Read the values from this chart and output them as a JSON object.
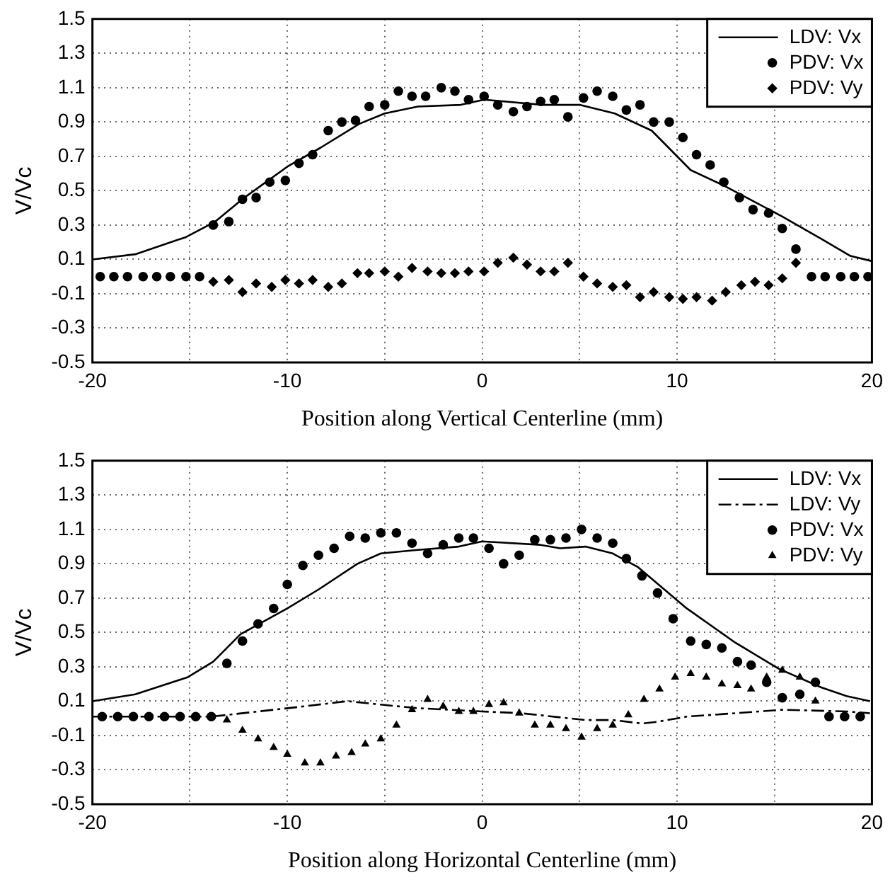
{
  "chart_data": [
    {
      "type": "scatter",
      "xlabel": "Position along Vertical Centerline (mm)",
      "ylabel": "V/Vc",
      "xlim": [
        -20,
        20
      ],
      "ylim": [
        -0.5,
        1.5
      ],
      "xticks": [
        -20,
        {
          "value": -15,
          "label": null
        },
        -10,
        {
          "value": -5,
          "label": null
        },
        0,
        {
          "value": 5,
          "label": null
        },
        10,
        {
          "value": 15,
          "label": null
        },
        20
      ],
      "yticks": [
        -0.5,
        -0.3,
        -0.1,
        0.1,
        0.3,
        0.5,
        0.7,
        0.9,
        1.1,
        1.3,
        1.5
      ],
      "grid": true,
      "legend": "top right",
      "series": [
        {
          "name": "LDV: Vx",
          "type": "line",
          "color": "#000000",
          "marker": "none",
          "line_style": "solid",
          "x": [
            -20,
            -17.8,
            -15.2,
            -13.7,
            -12.2,
            -10,
            -8.3,
            -6.3,
            -5,
            -3.3,
            -1.1,
            0.1,
            3.1,
            5,
            6.8,
            8.7,
            10.7,
            12.4,
            15.4,
            17.4,
            18.9,
            20
          ],
          "values": [
            0.1,
            0.13,
            0.23,
            0.32,
            0.46,
            0.64,
            0.75,
            0.89,
            0.95,
            0.99,
            1.0,
            1.03,
            1.0,
            1.0,
            0.95,
            0.85,
            0.62,
            0.53,
            0.35,
            0.22,
            0.12,
            0.09
          ]
        },
        {
          "name": "PDV: Vx",
          "color": "#000000",
          "marker": "circle",
          "x": [
            -19.6,
            -18.9,
            -18.2,
            -17.4,
            -16.7,
            -16,
            -15.2,
            -14.5,
            -13.8,
            -13,
            -12.3,
            -11.6,
            -10.9,
            -10.1,
            -9.4,
            -8.7,
            -7.9,
            -7.2,
            -6.5,
            -5.8,
            -5,
            -4.3,
            -3.6,
            -2.9,
            -2.1,
            -1.4,
            -0.7,
            0.1,
            0.8,
            1.6,
            2.3,
            3,
            3.7,
            4.4,
            5.2,
            5.9,
            6.7,
            7.4,
            8.1,
            8.8,
            9.6,
            10.3,
            11,
            11.7,
            12.4,
            13.2,
            13.9,
            14.7,
            15.4,
            16.1,
            16.9,
            17.6,
            18.4,
            19.1,
            19.8
          ],
          "values": [
            0,
            0,
            0,
            0,
            0,
            0,
            0,
            0,
            0.3,
            0.32,
            0.45,
            0.46,
            0.55,
            0.56,
            0.66,
            0.71,
            0.85,
            0.9,
            0.91,
            0.99,
            1.0,
            1.08,
            1.05,
            1.05,
            1.1,
            1.08,
            1.03,
            1.05,
            1.0,
            0.96,
            0.99,
            1.02,
            1.03,
            0.93,
            1.04,
            1.08,
            1.05,
            0.97,
            1.0,
            0.9,
            0.9,
            0.81,
            0.71,
            0.65,
            0.55,
            0.46,
            0.39,
            0.37,
            0.28,
            0.16,
            0,
            0,
            0,
            0,
            0
          ]
        },
        {
          "name": "PDV: Vy",
          "color": "#000000",
          "marker": "diamond",
          "x": [
            -13.8,
            -13,
            -12.3,
            -11.6,
            -10.8,
            -10.1,
            -9.4,
            -8.7,
            -7.9,
            -7.2,
            -6.4,
            -5.8,
            -5,
            -4.3,
            -3.6,
            -2.8,
            -2.1,
            -1.4,
            -0.7,
            0.1,
            0.8,
            1.6,
            2.3,
            3,
            3.7,
            4.4,
            5.2,
            5.9,
            6.7,
            7.4,
            8.1,
            8.8,
            9.6,
            10.3,
            11,
            11.8,
            12.5,
            13.3,
            14,
            14.7,
            15.4,
            16.1
          ],
          "values": [
            -0.03,
            -0.02,
            -0.09,
            -0.04,
            -0.06,
            -0.02,
            -0.04,
            -0.02,
            -0.06,
            -0.04,
            0.02,
            0.02,
            0.03,
            0,
            0.05,
            0.03,
            0.02,
            0.02,
            0.03,
            0.03,
            0.08,
            0.11,
            0.07,
            0.03,
            0.03,
            0.08,
            0,
            -0.04,
            -0.06,
            -0.05,
            -0.12,
            -0.09,
            -0.12,
            -0.13,
            -0.12,
            -0.14,
            -0.09,
            -0.05,
            -0.03,
            -0.05,
            -0.01,
            0.08
          ]
        }
      ]
    },
    {
      "type": "scatter",
      "xlabel": "Position along Horizontal Centerline (mm)",
      "ylabel": "V/Vc",
      "xlim": [
        -20,
        20
      ],
      "ylim": [
        -0.5,
        1.5
      ],
      "xticks": [
        -20,
        {
          "value": -15,
          "label": null
        },
        -10,
        {
          "value": -5,
          "label": null
        },
        0,
        {
          "value": 5,
          "label": null
        },
        10,
        {
          "value": 15,
          "label": null
        },
        20
      ],
      "yticks": [
        -0.5,
        -0.3,
        -0.1,
        0.1,
        0.3,
        0.5,
        0.7,
        0.9,
        1.1,
        1.3,
        1.5
      ],
      "grid": true,
      "legend": "top right",
      "series": [
        {
          "name": "LDV: Vx",
          "type": "line",
          "color": "#000000",
          "marker": "none",
          "line_style": "solid",
          "x": [
            -20,
            -17.8,
            -15.1,
            -13.8,
            -12.4,
            -10,
            -8.4,
            -6.4,
            -5.2,
            -3.4,
            -1.2,
            0,
            3,
            4,
            5.3,
            6.7,
            8,
            10.5,
            13,
            15.2,
            17.4,
            18.7,
            19.9
          ],
          "values": [
            0.1,
            0.14,
            0.24,
            0.33,
            0.49,
            0.64,
            0.75,
            0.9,
            0.96,
            0.98,
            1.0,
            1.03,
            1.01,
            0.99,
            1.0,
            0.96,
            0.88,
            0.64,
            0.44,
            0.29,
            0.18,
            0.13,
            0.1
          ]
        },
        {
          "name": "LDV: Vy",
          "type": "line",
          "color": "#000000",
          "marker": "none",
          "line_style": "dashdot",
          "x": [
            -20,
            -13.9,
            -9.9,
            -6.9,
            -5.2,
            -3.4,
            0,
            2,
            5.3,
            6.7,
            8.2,
            9,
            10.5,
            13,
            15.4,
            18.7,
            19.9
          ],
          "values": [
            0.01,
            0.01,
            0.06,
            0.1,
            0.08,
            0.06,
            0.04,
            0.03,
            -0.01,
            -0.01,
            -0.03,
            -0.02,
            0.01,
            0.03,
            0.05,
            0.04,
            0.03
          ]
        },
        {
          "name": "PDV: Vx",
          "color": "#000000",
          "marker": "circle",
          "x": [
            -19.5,
            -18.7,
            -17.9,
            -17.1,
            -16.3,
            -15.5,
            -14.7,
            -13.9,
            -13.1,
            -12.3,
            -11.5,
            -10.7,
            -10,
            -9.2,
            -8.4,
            -7.6,
            -6.8,
            -6,
            -5.2,
            -4.4,
            -3.6,
            -2.8,
            -2,
            -1.2,
            -0.45,
            0.35,
            1.1,
            1.9,
            2.7,
            3.5,
            4.3,
            5.1,
            5.9,
            6.7,
            7.4,
            8.2,
            9,
            9.8,
            10.7,
            11.5,
            12.3,
            13.1,
            13.8,
            14.6,
            15.4,
            16.3,
            17.1,
            17.8,
            18.6,
            19.4
          ],
          "values": [
            0.01,
            0.01,
            0.01,
            0.01,
            0.01,
            0.01,
            0.01,
            0.01,
            0.32,
            0.45,
            0.55,
            0.64,
            0.78,
            0.89,
            0.95,
            0.99,
            1.06,
            1.05,
            1.08,
            1.08,
            1.02,
            0.96,
            1.01,
            1.05,
            1.05,
            0.99,
            0.9,
            0.95,
            1.04,
            1.04,
            1.05,
            1.1,
            1.05,
            1.02,
            0.93,
            0.83,
            0.73,
            0.58,
            0.45,
            0.43,
            0.41,
            0.33,
            0.31,
            0.21,
            0.12,
            0.14,
            0.21,
            0.01,
            0.01,
            0.01
          ]
        },
        {
          "name": "PDV: Vy",
          "color": "#000000",
          "marker": "triangle",
          "x": [
            -13.1,
            -12.3,
            -11.5,
            -10.7,
            -10,
            -9.1,
            -8.3,
            -7.5,
            -6.7,
            -6,
            -5.2,
            -4.4,
            -3.6,
            -2.8,
            -2,
            -1.2,
            -0.45,
            0.35,
            1.1,
            1.9,
            2.7,
            3.5,
            4.3,
            5.1,
            5.9,
            6.7,
            7.5,
            8.3,
            9.1,
            9.9,
            10.7,
            11.5,
            12.3,
            13.1,
            13.8,
            14.6,
            15.4,
            16.3,
            17.1
          ],
          "values": [
            -0.01,
            -0.07,
            -0.12,
            -0.17,
            -0.21,
            -0.26,
            -0.26,
            -0.22,
            -0.2,
            -0.15,
            -0.12,
            -0.04,
            0.05,
            0.11,
            0.07,
            0.04,
            0.04,
            0.08,
            0.09,
            0.03,
            -0.04,
            -0.04,
            -0.06,
            -0.11,
            -0.06,
            -0.04,
            0.02,
            0.11,
            0.17,
            0.24,
            0.26,
            0.24,
            0.2,
            0.19,
            0.17,
            0.24,
            0.28,
            0.24,
            0.1
          ]
        }
      ]
    }
  ]
}
